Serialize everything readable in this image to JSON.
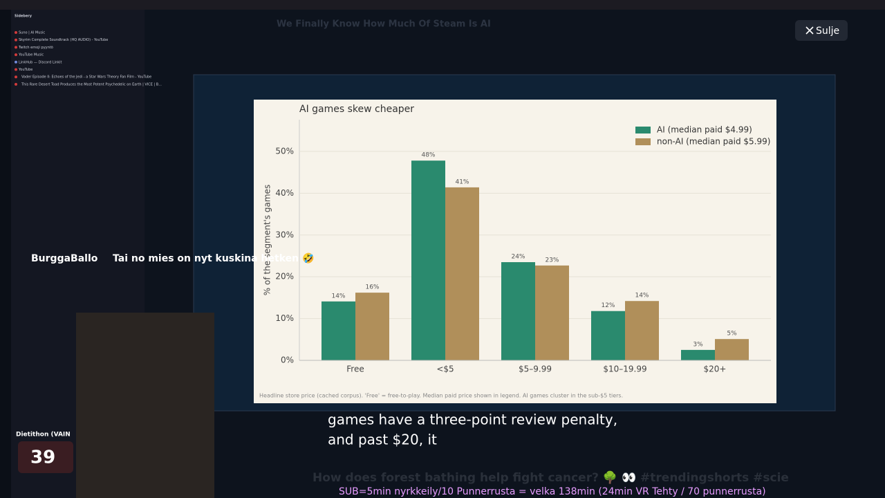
{
  "sidebar": {
    "title": "Sidebery",
    "tabs": [
      "Suno | AI Music",
      "Skyrim Complete Soundtrack (HQ AUDIO) - YouTube",
      "Twitch emoji pyyntö",
      "YouTube Music",
      "LinkHub — Discord Linkit",
      "YouTube",
      "Vader Episode II: Echoes of the Jedi - a Star Wars Theory Fan Film - YouTube",
      "This Rare Desert Toad Produces the Most Potent Psychedelic on Earth | VICE | B..."
    ]
  },
  "background_video": {
    "title": "We Finally Know How Much Of Steam Is AI",
    "next_title": "How does forest bathing help fight cancer? 🌳 👀 #trendingshorts #scie"
  },
  "close_button": "Sulje",
  "chat": {
    "user": "BurggaBallo",
    "message": "Tai no mies on nyt kuskina hetken 🤣"
  },
  "goal": {
    "label": "Dietithon (VAIN",
    "count": "39"
  },
  "captions": [
    "games have a three-point review penalty,",
    "and past $20, it"
  ],
  "ticker": "SUB=5min nyrkkeily/10 Punnerrusta = velka 138min (24min VR Tehty / 70 punnerrusta)",
  "chart_data": {
    "type": "bar",
    "title": "AI games skew cheaper",
    "y_label": "% of the segment's games",
    "categories": [
      "Free",
      "<$5",
      "$5–9.99",
      "$10–19.99",
      "$20+"
    ],
    "series": [
      {
        "name": "AI  (median paid $4.99)",
        "color": "#2a8a6e",
        "values": [
          14.1,
          47.8,
          23.5,
          11.8,
          2.5
        ],
        "value_labels": [
          "14%",
          "48%",
          "24%",
          "12%",
          "3%"
        ]
      },
      {
        "name": "non-AI  (median paid $5.99)",
        "color": "#b08f5a",
        "values": [
          16.2,
          41.4,
          22.7,
          14.2,
          5.1
        ],
        "value_labels": [
          "16%",
          "41%",
          "23%",
          "14%",
          "5%"
        ]
      }
    ],
    "ylim": [
      0,
      57.6
    ],
    "yticks": [
      {
        "value": 0,
        "label": "0%"
      },
      {
        "value": 10,
        "label": "10%"
      },
      {
        "value": 20,
        "label": "20%"
      },
      {
        "value": 30,
        "label": "30%"
      },
      {
        "value": 40,
        "label": "40%"
      },
      {
        "value": 50,
        "label": "50%"
      }
    ],
    "grid": true,
    "legend": "upper right",
    "footnote": "Headline store price (cached corpus). 'Free' = free-to-play. Median paid price shown in legend. AI games cluster in the sub-$5 tiers."
  }
}
